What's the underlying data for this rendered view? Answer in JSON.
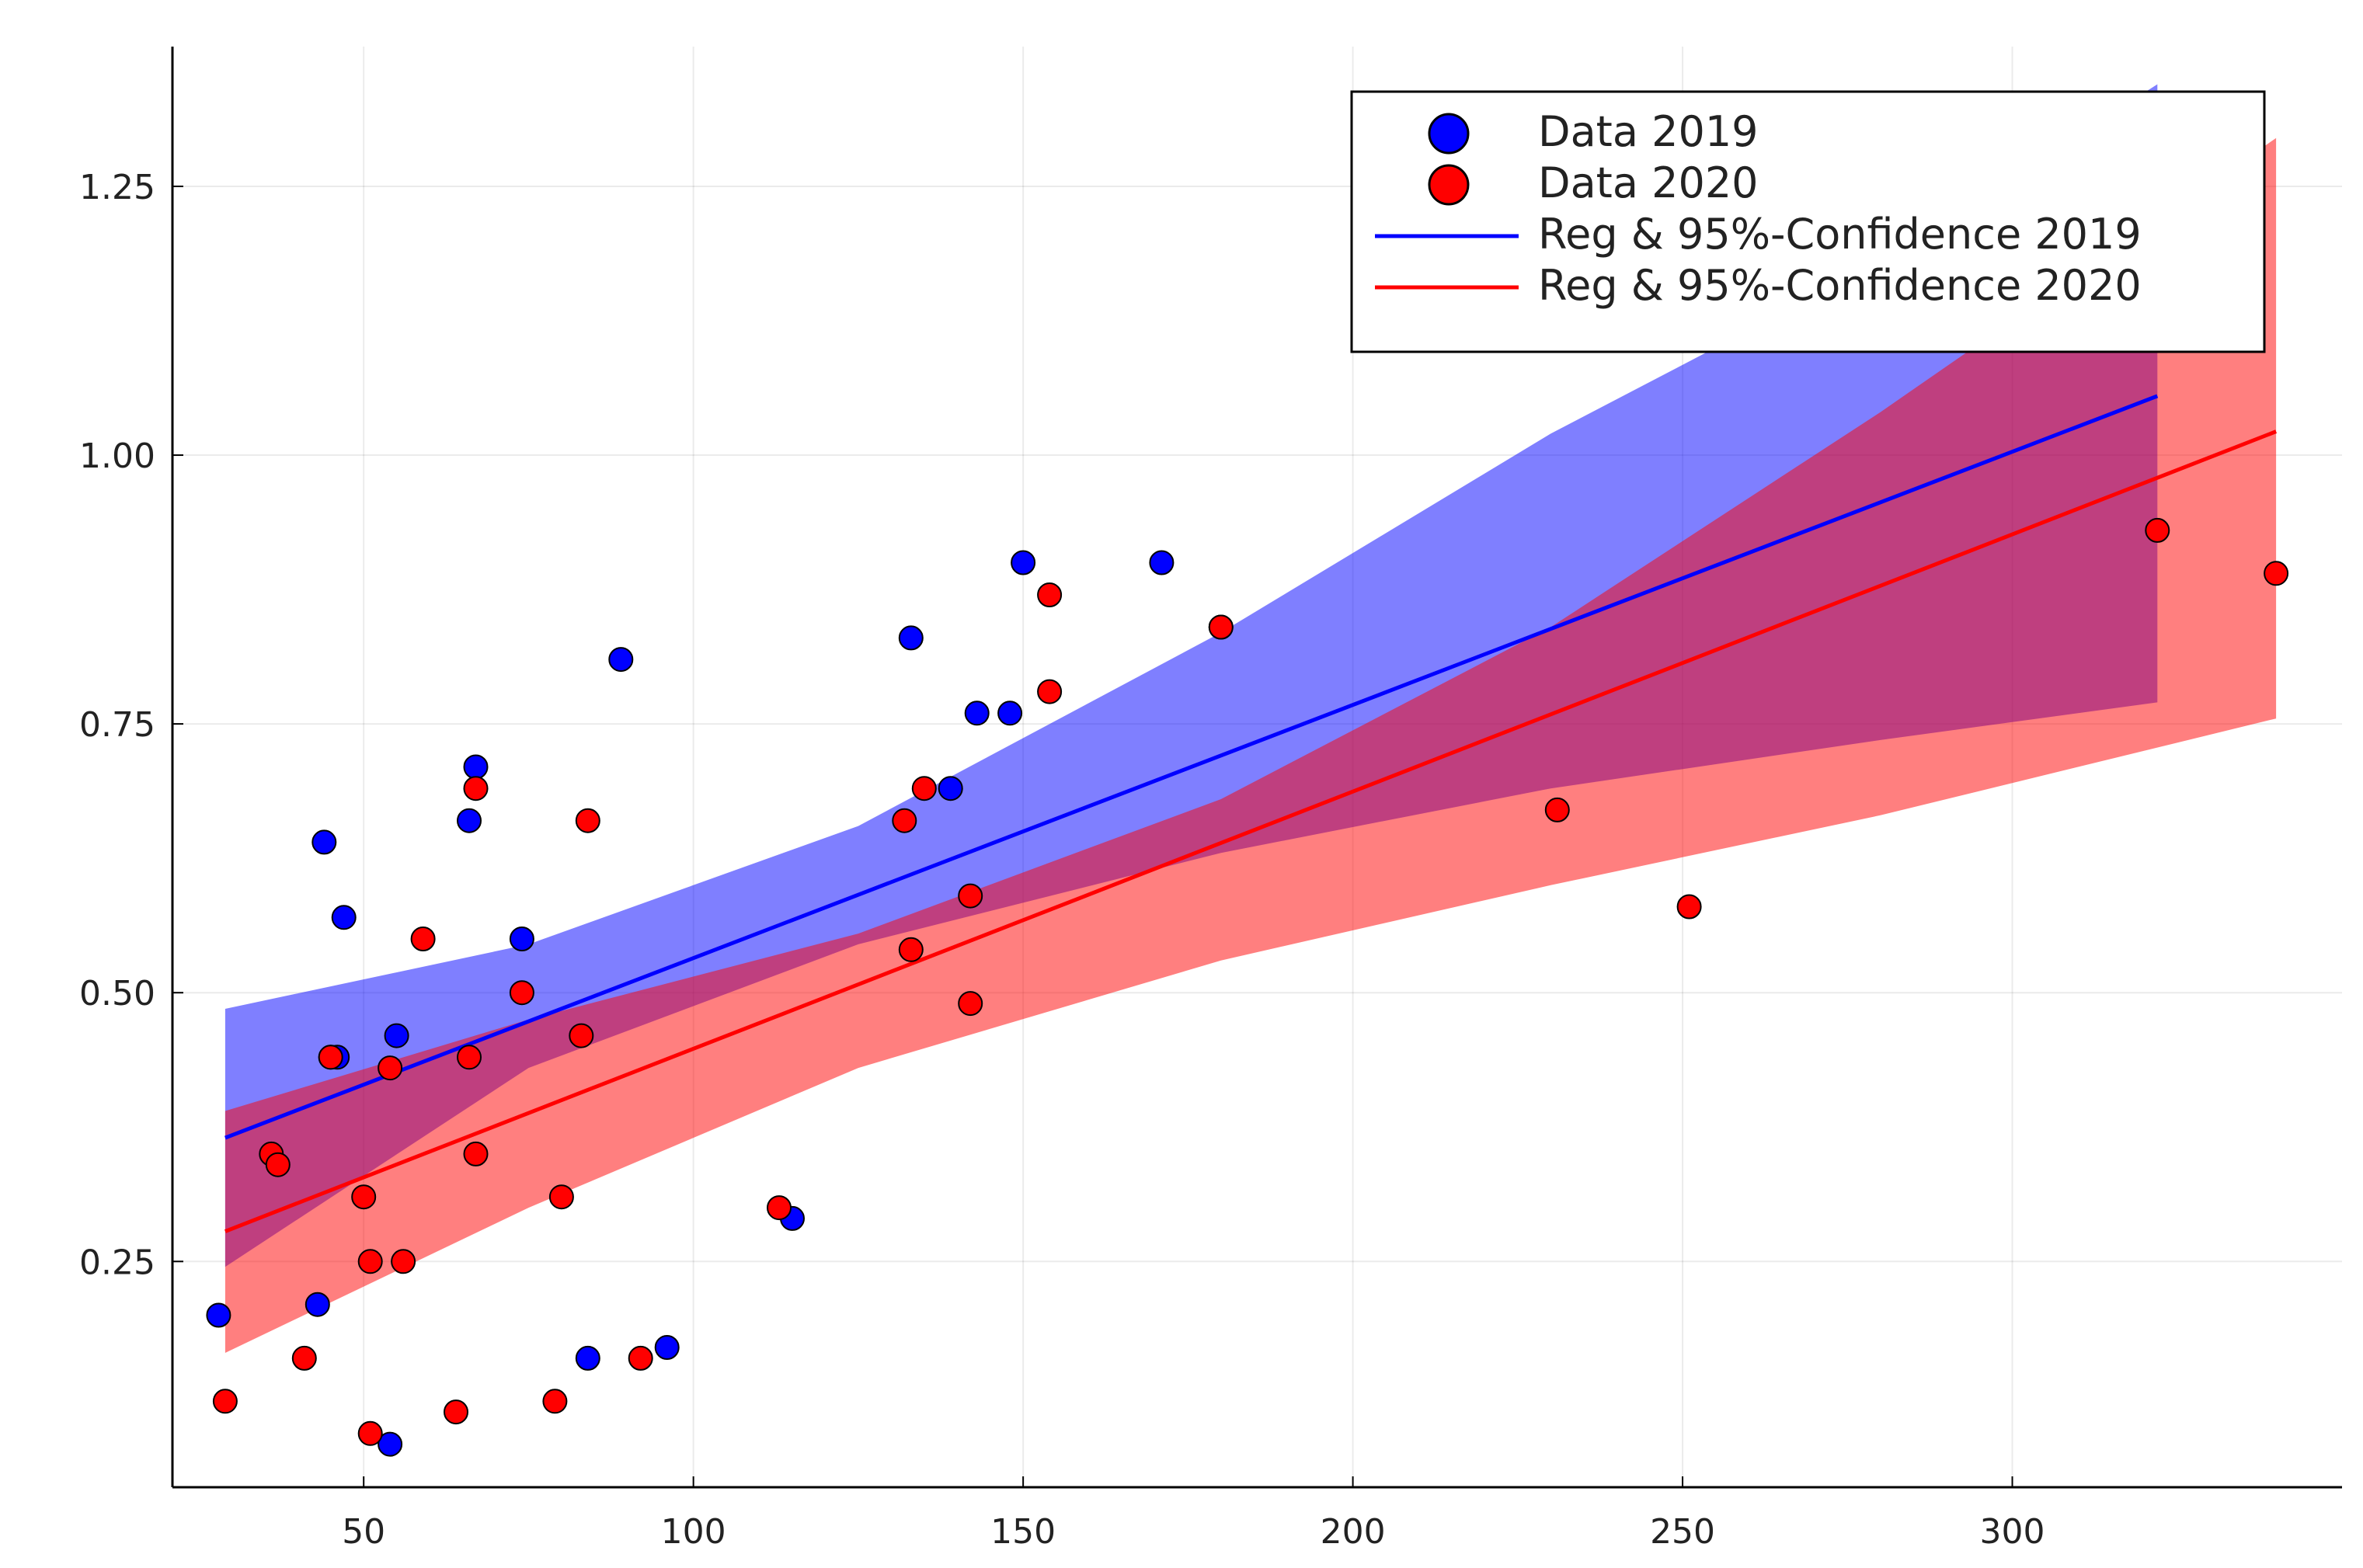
{
  "chart_data": {
    "type": "scatter",
    "title": "",
    "xlabel": "",
    "ylabel": "",
    "xlim": [
      21,
      350
    ],
    "ylim": [
      0.04,
      1.38
    ],
    "x_ticks": [
      50,
      100,
      150,
      200,
      250,
      300
    ],
    "x_tick_labels": [
      "50",
      "100",
      "150",
      "200",
      "250",
      "300"
    ],
    "y_ticks": [
      0.25,
      0.5,
      0.75,
      1.0,
      1.25
    ],
    "y_tick_labels": [
      "0.25",
      "0.50",
      "0.75",
      "1.00",
      "1.25"
    ],
    "grid": true,
    "legend_position": "top-right",
    "series": [
      {
        "name": "Data 2019",
        "kind": "scatter",
        "color": "#0000ff",
        "points": [
          [
            28,
            0.2
          ],
          [
            43,
            0.21
          ],
          [
            44,
            0.64
          ],
          [
            45,
            0.44
          ],
          [
            46,
            0.44
          ],
          [
            47,
            0.57
          ],
          [
            54,
            0.08
          ],
          [
            55,
            0.46
          ],
          [
            66,
            0.66
          ],
          [
            67,
            0.71
          ],
          [
            74,
            0.55
          ],
          [
            84,
            0.16
          ],
          [
            89,
            0.81
          ],
          [
            96,
            0.17
          ],
          [
            115,
            0.29
          ],
          [
            133,
            0.83
          ],
          [
            139,
            0.69
          ],
          [
            143,
            0.76
          ],
          [
            148,
            0.76
          ],
          [
            150,
            0.9
          ],
          [
            171,
            0.9
          ],
          [
            180,
            0.84
          ]
        ]
      },
      {
        "name": "Data 2020",
        "kind": "scatter",
        "color": "#ff0000",
        "points": [
          [
            29,
            0.12
          ],
          [
            36,
            0.35
          ],
          [
            37,
            0.34
          ],
          [
            41,
            0.16
          ],
          [
            45,
            0.44
          ],
          [
            50,
            0.31
          ],
          [
            51,
            0.09
          ],
          [
            51,
            0.25
          ],
          [
            54,
            0.43
          ],
          [
            56,
            0.25
          ],
          [
            59,
            0.55
          ],
          [
            64,
            0.11
          ],
          [
            66,
            0.44
          ],
          [
            67,
            0.69
          ],
          [
            67,
            0.35
          ],
          [
            74,
            0.5
          ],
          [
            79,
            0.12
          ],
          [
            80,
            0.31
          ],
          [
            83,
            0.46
          ],
          [
            84,
            0.66
          ],
          [
            92,
            0.16
          ],
          [
            113,
            0.3
          ],
          [
            132,
            0.66
          ],
          [
            133,
            0.54
          ],
          [
            135,
            0.69
          ],
          [
            142,
            0.49
          ],
          [
            142,
            0.59
          ],
          [
            154,
            0.87
          ],
          [
            154,
            0.78
          ],
          [
            180,
            0.84
          ],
          [
            231,
            0.67
          ],
          [
            251,
            0.58
          ],
          [
            322,
            0.93
          ],
          [
            340,
            0.89
          ]
        ]
      },
      {
        "name": "Reg & 95%-Confidence 2019",
        "kind": "line",
        "color": "#0000ff",
        "line": [
          [
            29,
            0.365
          ],
          [
            322,
            1.055
          ]
        ],
        "band_x": [
          29,
          75,
          125,
          180,
          230,
          280,
          322
        ],
        "band_lower": [
          0.245,
          0.43,
          0.545,
          0.63,
          0.69,
          0.735,
          0.77
        ],
        "band_upper": [
          0.485,
          0.545,
          0.655,
          0.835,
          1.02,
          1.18,
          1.345
        ]
      },
      {
        "name": "Reg & 95%-Confidence 2020",
        "kind": "line",
        "color": "#ff0000",
        "line": [
          [
            29,
            0.278
          ],
          [
            340,
            1.022
          ]
        ],
        "band_x": [
          29,
          75,
          125,
          180,
          230,
          280,
          340
        ],
        "band_lower": [
          0.165,
          0.3,
          0.43,
          0.53,
          0.6,
          0.665,
          0.755
        ],
        "band_upper": [
          0.39,
          0.475,
          0.555,
          0.68,
          0.84,
          1.04,
          1.295
        ]
      }
    ]
  }
}
